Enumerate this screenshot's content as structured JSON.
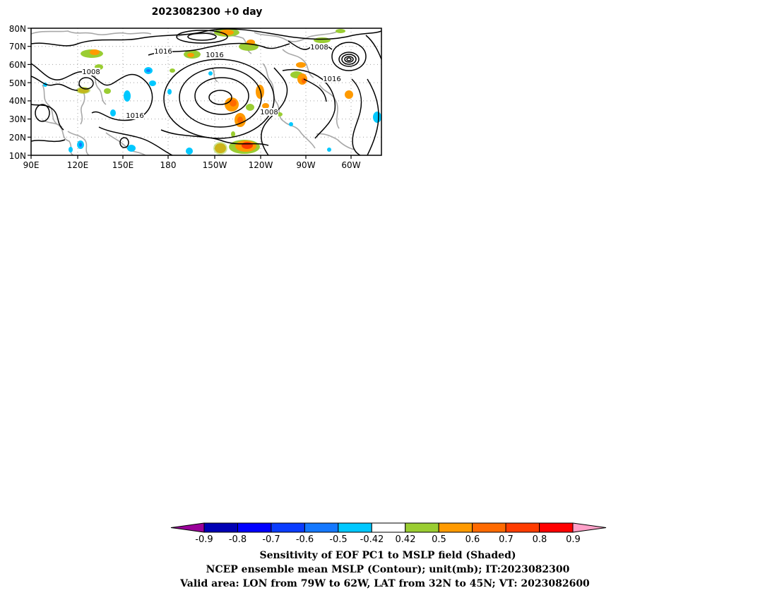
{
  "map": {
    "title": "2023082300  +0 day",
    "lat_labels": [
      "80N",
      "70N",
      "60N",
      "50N",
      "40N",
      "30N",
      "20N",
      "10N"
    ],
    "lon_labels": [
      "90E",
      "120E",
      "150E",
      "180",
      "150W",
      "120W",
      "90W",
      "60W"
    ],
    "contour_labels": [
      "1016",
      "1016",
      "1008",
      "1008",
      "1016",
      "1016",
      "1008"
    ],
    "colors": {
      "coastline": "#a8a8a8",
      "contour": "#000000",
      "gridline": "#a0a0a0"
    }
  },
  "colorbar": {
    "tick_labels": [
      "-0.9",
      "-0.8",
      "-0.7",
      "-0.6",
      "-0.5",
      "-0.42",
      "0.42",
      "0.5",
      "0.6",
      "0.7",
      "0.8",
      "0.9"
    ],
    "colors": [
      "#9a009a",
      "#0000b4",
      "#0000ff",
      "#0a3cff",
      "#1478ff",
      "#00c8ff",
      "#ffffff",
      "#9acd32",
      "#ff9a00",
      "#ff6a00",
      "#ff3c00",
      "#ff0000",
      "#ffa0c8"
    ]
  },
  "caption": {
    "line1": "Sensitivity of EOF PC1 to MSLP field (Shaded)",
    "line2": "NCEP ensemble mean MSLP (Contour); unit(mb); IT:2023082300",
    "line3": "Valid area: LON from 79W to 62W, LAT from 32N to 45N; VT: 2023082600"
  }
}
